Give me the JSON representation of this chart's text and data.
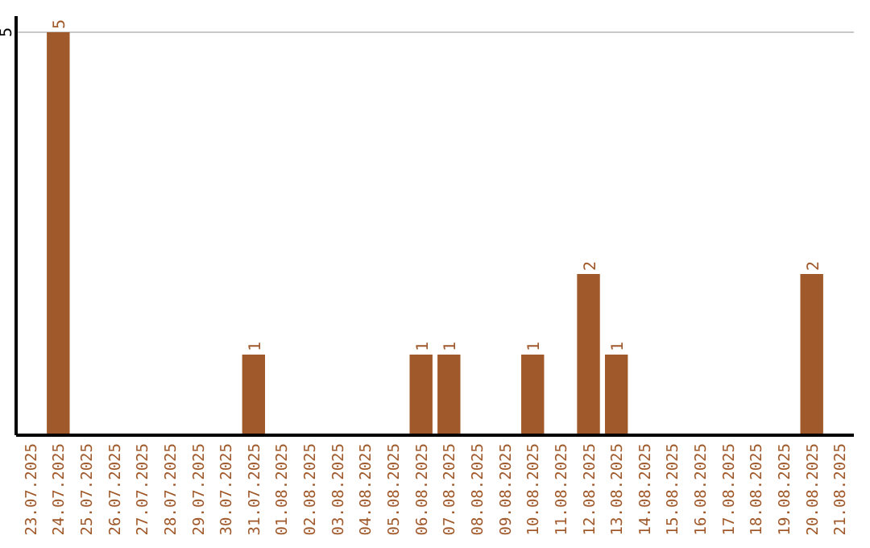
{
  "chart_data": {
    "type": "bar",
    "categories": [
      "23.07.2025",
      "24.07.2025",
      "25.07.2025",
      "26.07.2025",
      "27.07.2025",
      "28.07.2025",
      "29.07.2025",
      "30.07.2025",
      "31.07.2025",
      "01.08.2025",
      "02.08.2025",
      "03.08.2025",
      "04.08.2025",
      "05.08.2025",
      "06.08.2025",
      "07.08.2025",
      "08.08.2025",
      "09.08.2025",
      "10.08.2025",
      "11.08.2025",
      "12.08.2025",
      "13.08.2025",
      "14.08.2025",
      "15.08.2025",
      "16.08.2025",
      "17.08.2025",
      "18.08.2025",
      "19.08.2025",
      "20.08.2025",
      "21.08.2025"
    ],
    "values": [
      0,
      5,
      0,
      0,
      0,
      0,
      0,
      0,
      1,
      0,
      0,
      0,
      0,
      0,
      1,
      1,
      0,
      0,
      1,
      0,
      2,
      1,
      0,
      0,
      0,
      0,
      0,
      0,
      2,
      0
    ],
    "value_labels": [
      null,
      "5",
      null,
      null,
      null,
      null,
      null,
      null,
      "1",
      null,
      null,
      null,
      null,
      null,
      "1",
      "1",
      null,
      null,
      "1",
      null,
      "2",
      "1",
      null,
      null,
      null,
      null,
      null,
      null,
      "2",
      null
    ],
    "color": "#a0592a",
    "ylim": [
      0,
      5
    ],
    "yticks": [
      5
    ],
    "ref_lines": [
      {
        "axis": "y",
        "value": 5,
        "color": "#c8c8c8"
      }
    ]
  }
}
